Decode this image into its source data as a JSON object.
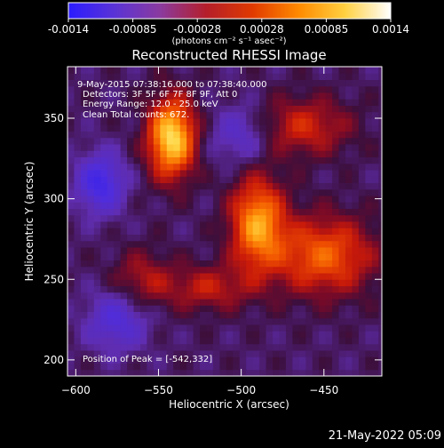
{
  "colorbar": {
    "tick_labels": [
      "-0.0014",
      "-0.00085",
      "-0.00028",
      "0.00028",
      "0.00085",
      "0.0014"
    ],
    "range": [
      -0.0014,
      0.0014
    ],
    "units": "(photons cm⁻² s⁻¹ asec⁻²)",
    "colors": [
      "#2b1cff",
      "#5a33d6",
      "#8b3a9e",
      "#b51e2a",
      "#e03a00",
      "#ff8a00",
      "#ffd040",
      "#ffffff"
    ]
  },
  "title": "Reconstructed RHESSI Image",
  "info": {
    "time_range": "9-May-2015 07:38:16.000 to 07:38:40.000",
    "detectors": "Detectors: 3F 5F 6F 7F 8F 9F, Att 0",
    "energy": "Energy Range: 12.0 - 25.0 keV",
    "clean": "Clean    Total counts: 672."
  },
  "peak_label": "Position of Peak = [-542,332]",
  "timestamp": "21-May-2022 05:09",
  "chart_data": {
    "type": "heatmap",
    "title": "Reconstructed RHESSI Image",
    "xlabel": "Heliocentric X (arcsec)",
    "ylabel": "Heliocentric Y (arcsec)",
    "xlim": [
      -605,
      -415
    ],
    "ylim": [
      190,
      382
    ],
    "x_ticks": [
      -600,
      -550,
      -500,
      -450
    ],
    "y_ticks": [
      200,
      250,
      300,
      350
    ],
    "x_tick_labels": [
      "−600",
      "−550",
      "−500",
      "−450"
    ],
    "y_tick_labels": [
      "200",
      "250",
      "300",
      "350"
    ],
    "value_range": [
      -0.0014,
      0.0014
    ],
    "peak": [
      -542,
      332
    ],
    "bright_sources": [
      {
        "x": -542,
        "y": 338,
        "rx": 14,
        "ry": 24,
        "level": 1.0
      },
      {
        "x": -490,
        "y": 285,
        "rx": 16,
        "ry": 28,
        "level": 0.78
      },
      {
        "x": -450,
        "y": 265,
        "rx": 30,
        "ry": 24,
        "level": 0.6
      },
      {
        "x": -462,
        "y": 345,
        "rx": 28,
        "ry": 18,
        "level": 0.4
      },
      {
        "x": -520,
        "y": 245,
        "rx": 26,
        "ry": 14,
        "level": 0.35
      },
      {
        "x": -560,
        "y": 250,
        "rx": 18,
        "ry": 18,
        "level": 0.3
      }
    ],
    "negative_regions": [
      {
        "x": -585,
        "y": 310,
        "rx": 14,
        "ry": 18,
        "level": -0.55
      },
      {
        "x": -575,
        "y": 225,
        "rx": 18,
        "ry": 18,
        "level": -0.4
      },
      {
        "x": -500,
        "y": 340,
        "rx": 18,
        "ry": 18,
        "level": -0.3
      }
    ]
  }
}
